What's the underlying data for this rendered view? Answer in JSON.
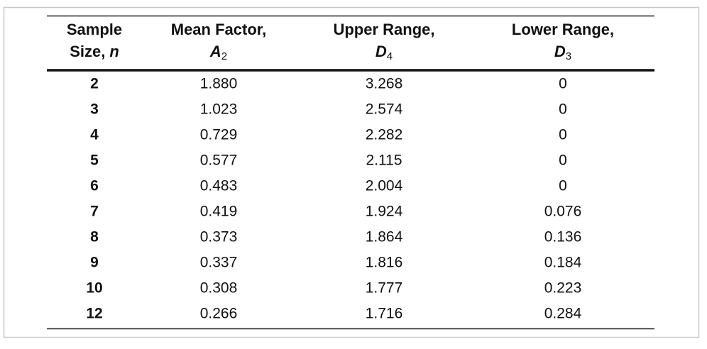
{
  "table": {
    "header": [
      {
        "line1": "Sample",
        "line2": "Size,",
        "symbol": "n"
      },
      {
        "line1": "Mean Factor,",
        "symbol": "A",
        "subscript": "2"
      },
      {
        "line1": "Upper Range,",
        "symbol": "D",
        "subscript": "4"
      },
      {
        "line1": "Lower Range,",
        "symbol": "D",
        "subscript": "3"
      }
    ],
    "rows": [
      [
        "2",
        "1.880",
        "3.268",
        "0"
      ],
      [
        "3",
        "1.023",
        "2.574",
        "0"
      ],
      [
        "4",
        "0.729",
        "2.282",
        "0"
      ],
      [
        "5",
        "0.577",
        "2.115",
        "0"
      ],
      [
        "6",
        "0.483",
        "2.004",
        "0"
      ],
      [
        "7",
        "0.419",
        "1.924",
        "0.076"
      ],
      [
        "8",
        "0.373",
        "1.864",
        "0.136"
      ],
      [
        "9",
        "0.337",
        "1.816",
        "0.184"
      ],
      [
        "10",
        "0.308",
        "1.777",
        "0.223"
      ],
      [
        "12",
        "0.266",
        "1.716",
        "0.284"
      ]
    ]
  }
}
